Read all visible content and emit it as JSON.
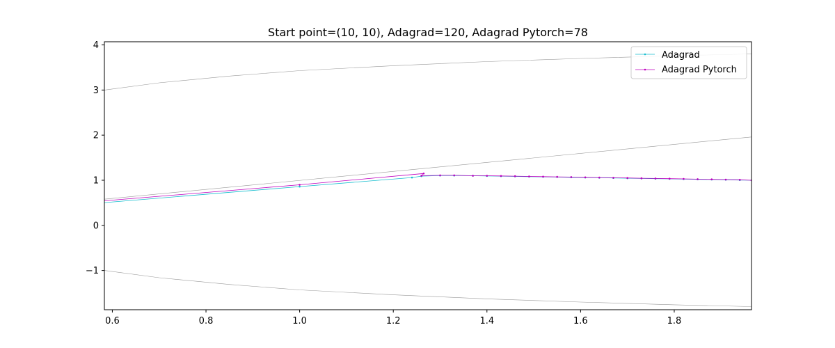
{
  "chart_data": {
    "type": "line",
    "title": "Start point=(10, 10), Adagrad=120, Adagrad Pytorch=78",
    "xlabel": "",
    "ylabel": "",
    "xlim": [
      0.583,
      1.965
    ],
    "ylim": [
      -1.87,
      4.07
    ],
    "x_ticks": [
      0.6,
      0.8,
      1.0,
      1.2,
      1.4,
      1.6,
      1.8
    ],
    "x_tick_labels": [
      "0.6",
      "0.8",
      "1.0",
      "1.2",
      "1.4",
      "1.6",
      "1.8"
    ],
    "y_ticks": [
      -1,
      0,
      1,
      2,
      3,
      4
    ],
    "y_tick_labels": [
      "−1",
      "0",
      "1",
      "2",
      "3",
      "4"
    ],
    "grid": false,
    "legend": {
      "position": "top-right",
      "entries": [
        "Adagrad",
        "Adagrad Pytorch"
      ]
    },
    "contours": [
      {
        "points": [
          [
            0.583,
            3.0
          ],
          [
            0.7,
            3.16
          ],
          [
            0.85,
            3.31
          ],
          [
            1.0,
            3.43
          ],
          [
            1.2,
            3.54
          ],
          [
            1.4,
            3.63
          ],
          [
            1.6,
            3.7
          ],
          [
            1.8,
            3.76
          ],
          [
            1.965,
            3.8
          ]
        ]
      },
      {
        "points": [
          [
            0.583,
            -1.0
          ],
          [
            0.7,
            -1.16
          ],
          [
            0.85,
            -1.31
          ],
          [
            1.0,
            -1.43
          ],
          [
            1.2,
            -1.54
          ],
          [
            1.4,
            -1.63
          ],
          [
            1.6,
            -1.7
          ],
          [
            1.8,
            -1.76
          ],
          [
            1.965,
            -1.8
          ]
        ]
      },
      {
        "points": [
          [
            0.583,
            0.58
          ],
          [
            1.965,
            1.96
          ]
        ]
      }
    ],
    "series": [
      {
        "name": "Adagrad",
        "color": "#17becf",
        "points": [
          [
            0.583,
            0.505
          ],
          [
            1.0,
            0.86
          ],
          [
            1.24,
            1.06
          ],
          [
            1.26,
            1.09
          ],
          [
            1.3,
            1.105
          ],
          [
            1.33,
            1.105
          ],
          [
            1.37,
            1.1
          ],
          [
            1.4,
            1.095
          ],
          [
            1.43,
            1.09
          ],
          [
            1.46,
            1.085
          ],
          [
            1.49,
            1.08
          ],
          [
            1.52,
            1.075
          ],
          [
            1.55,
            1.07
          ],
          [
            1.58,
            1.065
          ],
          [
            1.61,
            1.06
          ],
          [
            1.64,
            1.055
          ],
          [
            1.67,
            1.05
          ],
          [
            1.7,
            1.045
          ],
          [
            1.73,
            1.04
          ],
          [
            1.76,
            1.035
          ],
          [
            1.79,
            1.03
          ],
          [
            1.82,
            1.025
          ],
          [
            1.85,
            1.02
          ],
          [
            1.88,
            1.015
          ],
          [
            1.91,
            1.01
          ],
          [
            1.94,
            1.005
          ],
          [
            1.965,
            1.0
          ]
        ]
      },
      {
        "name": "Adagrad Pytorch",
        "color": "#bf00bf",
        "points": [
          [
            0.583,
            0.545
          ],
          [
            1.0,
            0.9
          ],
          [
            1.265,
            1.15
          ],
          [
            1.26,
            1.1
          ],
          [
            1.3,
            1.11
          ],
          [
            1.33,
            1.11
          ],
          [
            1.37,
            1.1
          ],
          [
            1.4,
            1.1
          ],
          [
            1.43,
            1.095
          ],
          [
            1.46,
            1.09
          ],
          [
            1.49,
            1.085
          ],
          [
            1.52,
            1.08
          ],
          [
            1.55,
            1.075
          ],
          [
            1.58,
            1.07
          ],
          [
            1.61,
            1.065
          ],
          [
            1.64,
            1.06
          ],
          [
            1.67,
            1.055
          ],
          [
            1.7,
            1.05
          ],
          [
            1.73,
            1.045
          ],
          [
            1.76,
            1.04
          ],
          [
            1.79,
            1.035
          ],
          [
            1.82,
            1.03
          ],
          [
            1.85,
            1.025
          ],
          [
            1.88,
            1.02
          ],
          [
            1.91,
            1.015
          ],
          [
            1.94,
            1.01
          ],
          [
            1.965,
            1.0
          ]
        ]
      }
    ]
  }
}
